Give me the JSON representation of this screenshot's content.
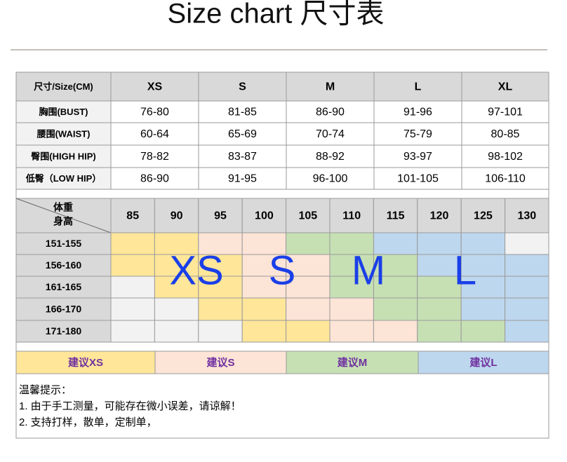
{
  "header": {
    "title": "Size chart 尺寸表"
  },
  "measure_table": {
    "header": [
      "尺寸/Size(CM)",
      "XS",
      "S",
      "M",
      "L",
      "XL"
    ],
    "rows": [
      [
        "胸围(BUST)",
        "76-80",
        "81-85",
        "86-90",
        "91-96",
        "97-101"
      ],
      [
        "腰围(WAIST)",
        "60-64",
        "65-69",
        "70-74",
        "75-79",
        "80-85"
      ],
      [
        "臀围(HIGH HIP)",
        "78-82",
        "83-87",
        "88-92",
        "93-97",
        "98-102"
      ],
      [
        "低臀（LOW HIP）",
        "86-90",
        "91-95",
        "96-100",
        "101-105",
        "106-110"
      ]
    ]
  },
  "fit_table": {
    "weight_label": "体重",
    "height_label": "身高",
    "weights": [
      85,
      90,
      95,
      100,
      105,
      110,
      115,
      120,
      125,
      130
    ],
    "heights": [
      "151-155",
      "156-160",
      "161-165",
      "166-170",
      "171-180"
    ],
    "cell_colors": [
      [
        "#ffe699",
        "#ffe699",
        "#fce4d6",
        "#fce4d6",
        "#c6e0b4",
        "#c6e0b4",
        "#bdd7ee",
        "#bdd7ee",
        "#bdd7ee",
        "#f2f2f2"
      ],
      [
        "#ffe699",
        "#ffe699",
        "#ffe699",
        "#fce4d6",
        "#fce4d6",
        "#c6e0b4",
        "#c6e0b4",
        "#bdd7ee",
        "#bdd7ee",
        "#bdd7ee"
      ],
      [
        "#f2f2f2",
        "#ffe699",
        "#ffe699",
        "#fce4d6",
        "#fce4d6",
        "#c6e0b4",
        "#c6e0b4",
        "#c6e0b4",
        "#bdd7ee",
        "#bdd7ee"
      ],
      [
        "#f2f2f2",
        "#f2f2f2",
        "#ffe699",
        "#ffe699",
        "#fce4d6",
        "#fce4d6",
        "#c6e0b4",
        "#c6e0b4",
        "#bdd7ee",
        "#bdd7ee"
      ],
      [
        "#f2f2f2",
        "#f2f2f2",
        "#f2f2f2",
        "#ffe699",
        "#ffe699",
        "#fce4d6",
        "#fce4d6",
        "#c6e0b4",
        "#c6e0b4",
        "#bdd7ee"
      ]
    ],
    "size_labels": [
      "XS",
      "S",
      "M",
      "L"
    ]
  },
  "legend": [
    {
      "label": "建议XS",
      "color": "#ffe699"
    },
    {
      "label": "建议S",
      "color": "#fce4d6"
    },
    {
      "label": "建议M",
      "color": "#c6e0b4"
    },
    {
      "label": "建议L",
      "color": "#bdd7ee"
    }
  ],
  "notes": {
    "title": "温馨提示：",
    "lines": [
      "1. 由于手工测量，可能存在微小误差，请谅解！",
      "2. 支持打样，散单，定制单，"
    ]
  }
}
